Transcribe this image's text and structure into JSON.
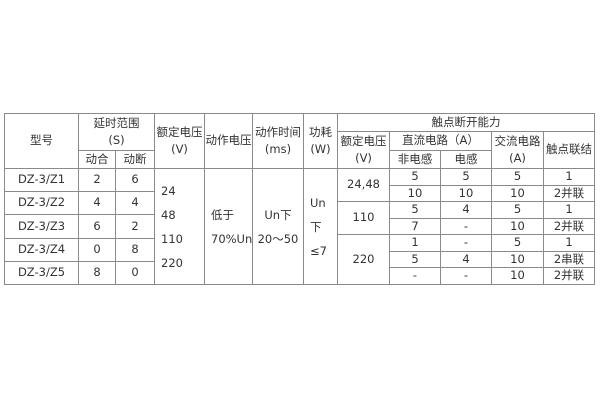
{
  "table": {
    "header": {
      "model": "型号",
      "delay_range": "延时范围\n(S)",
      "make": "动合",
      "break": "动断",
      "rated_voltage": "额定电压\n(V)",
      "operate_voltage": "动作电压",
      "operate_time": "动作时间\n(ms)",
      "power": "功耗\n(W)",
      "contact_capacity": "触点断开能力",
      "contact_rated_voltage": "额定电压\n(V)",
      "dc_circuit": "直流电路（A）",
      "non_inductive": "非电感",
      "inductive": "电感",
      "ac_circuit": "交流电路\n(A)",
      "contact_connection": "触点联结"
    },
    "models": [
      {
        "model": "DZ-3/Z1",
        "make": "2",
        "break": "6"
      },
      {
        "model": "DZ-3/Z2",
        "make": "4",
        "break": "4"
      },
      {
        "model": "DZ-3/Z3",
        "make": "6",
        "break": "2"
      },
      {
        "model": "DZ-3/Z4",
        "make": "0",
        "break": "8"
      },
      {
        "model": "DZ-3/Z5",
        "make": "8",
        "break": "0"
      }
    ],
    "rated_voltage_values": "24\n48\n110\n220",
    "operate_voltage_value": "低于\n70%Un",
    "operate_time_value": "Un下\n20～50",
    "power_value": "Un下\n≤7",
    "contact_voltage_groups": [
      "24,48",
      "110",
      "220"
    ],
    "contact_rows": [
      {
        "non_inductive": "5",
        "inductive": "5",
        "ac": "5",
        "connection": "1"
      },
      {
        "non_inductive": "10",
        "inductive": "10",
        "ac": "10",
        "connection": "2并联"
      },
      {
        "non_inductive": "5",
        "inductive": "4",
        "ac": "5",
        "connection": "1"
      },
      {
        "non_inductive": "7",
        "inductive": "-",
        "ac": "10",
        "connection": "2并联"
      },
      {
        "non_inductive": "1",
        "inductive": "-",
        "ac": "5",
        "connection": "1"
      },
      {
        "non_inductive": "5",
        "inductive": "4",
        "ac": "10",
        "connection": "2串联"
      },
      {
        "non_inductive": "-",
        "inductive": "-",
        "ac": "10",
        "connection": "2并联"
      }
    ]
  }
}
